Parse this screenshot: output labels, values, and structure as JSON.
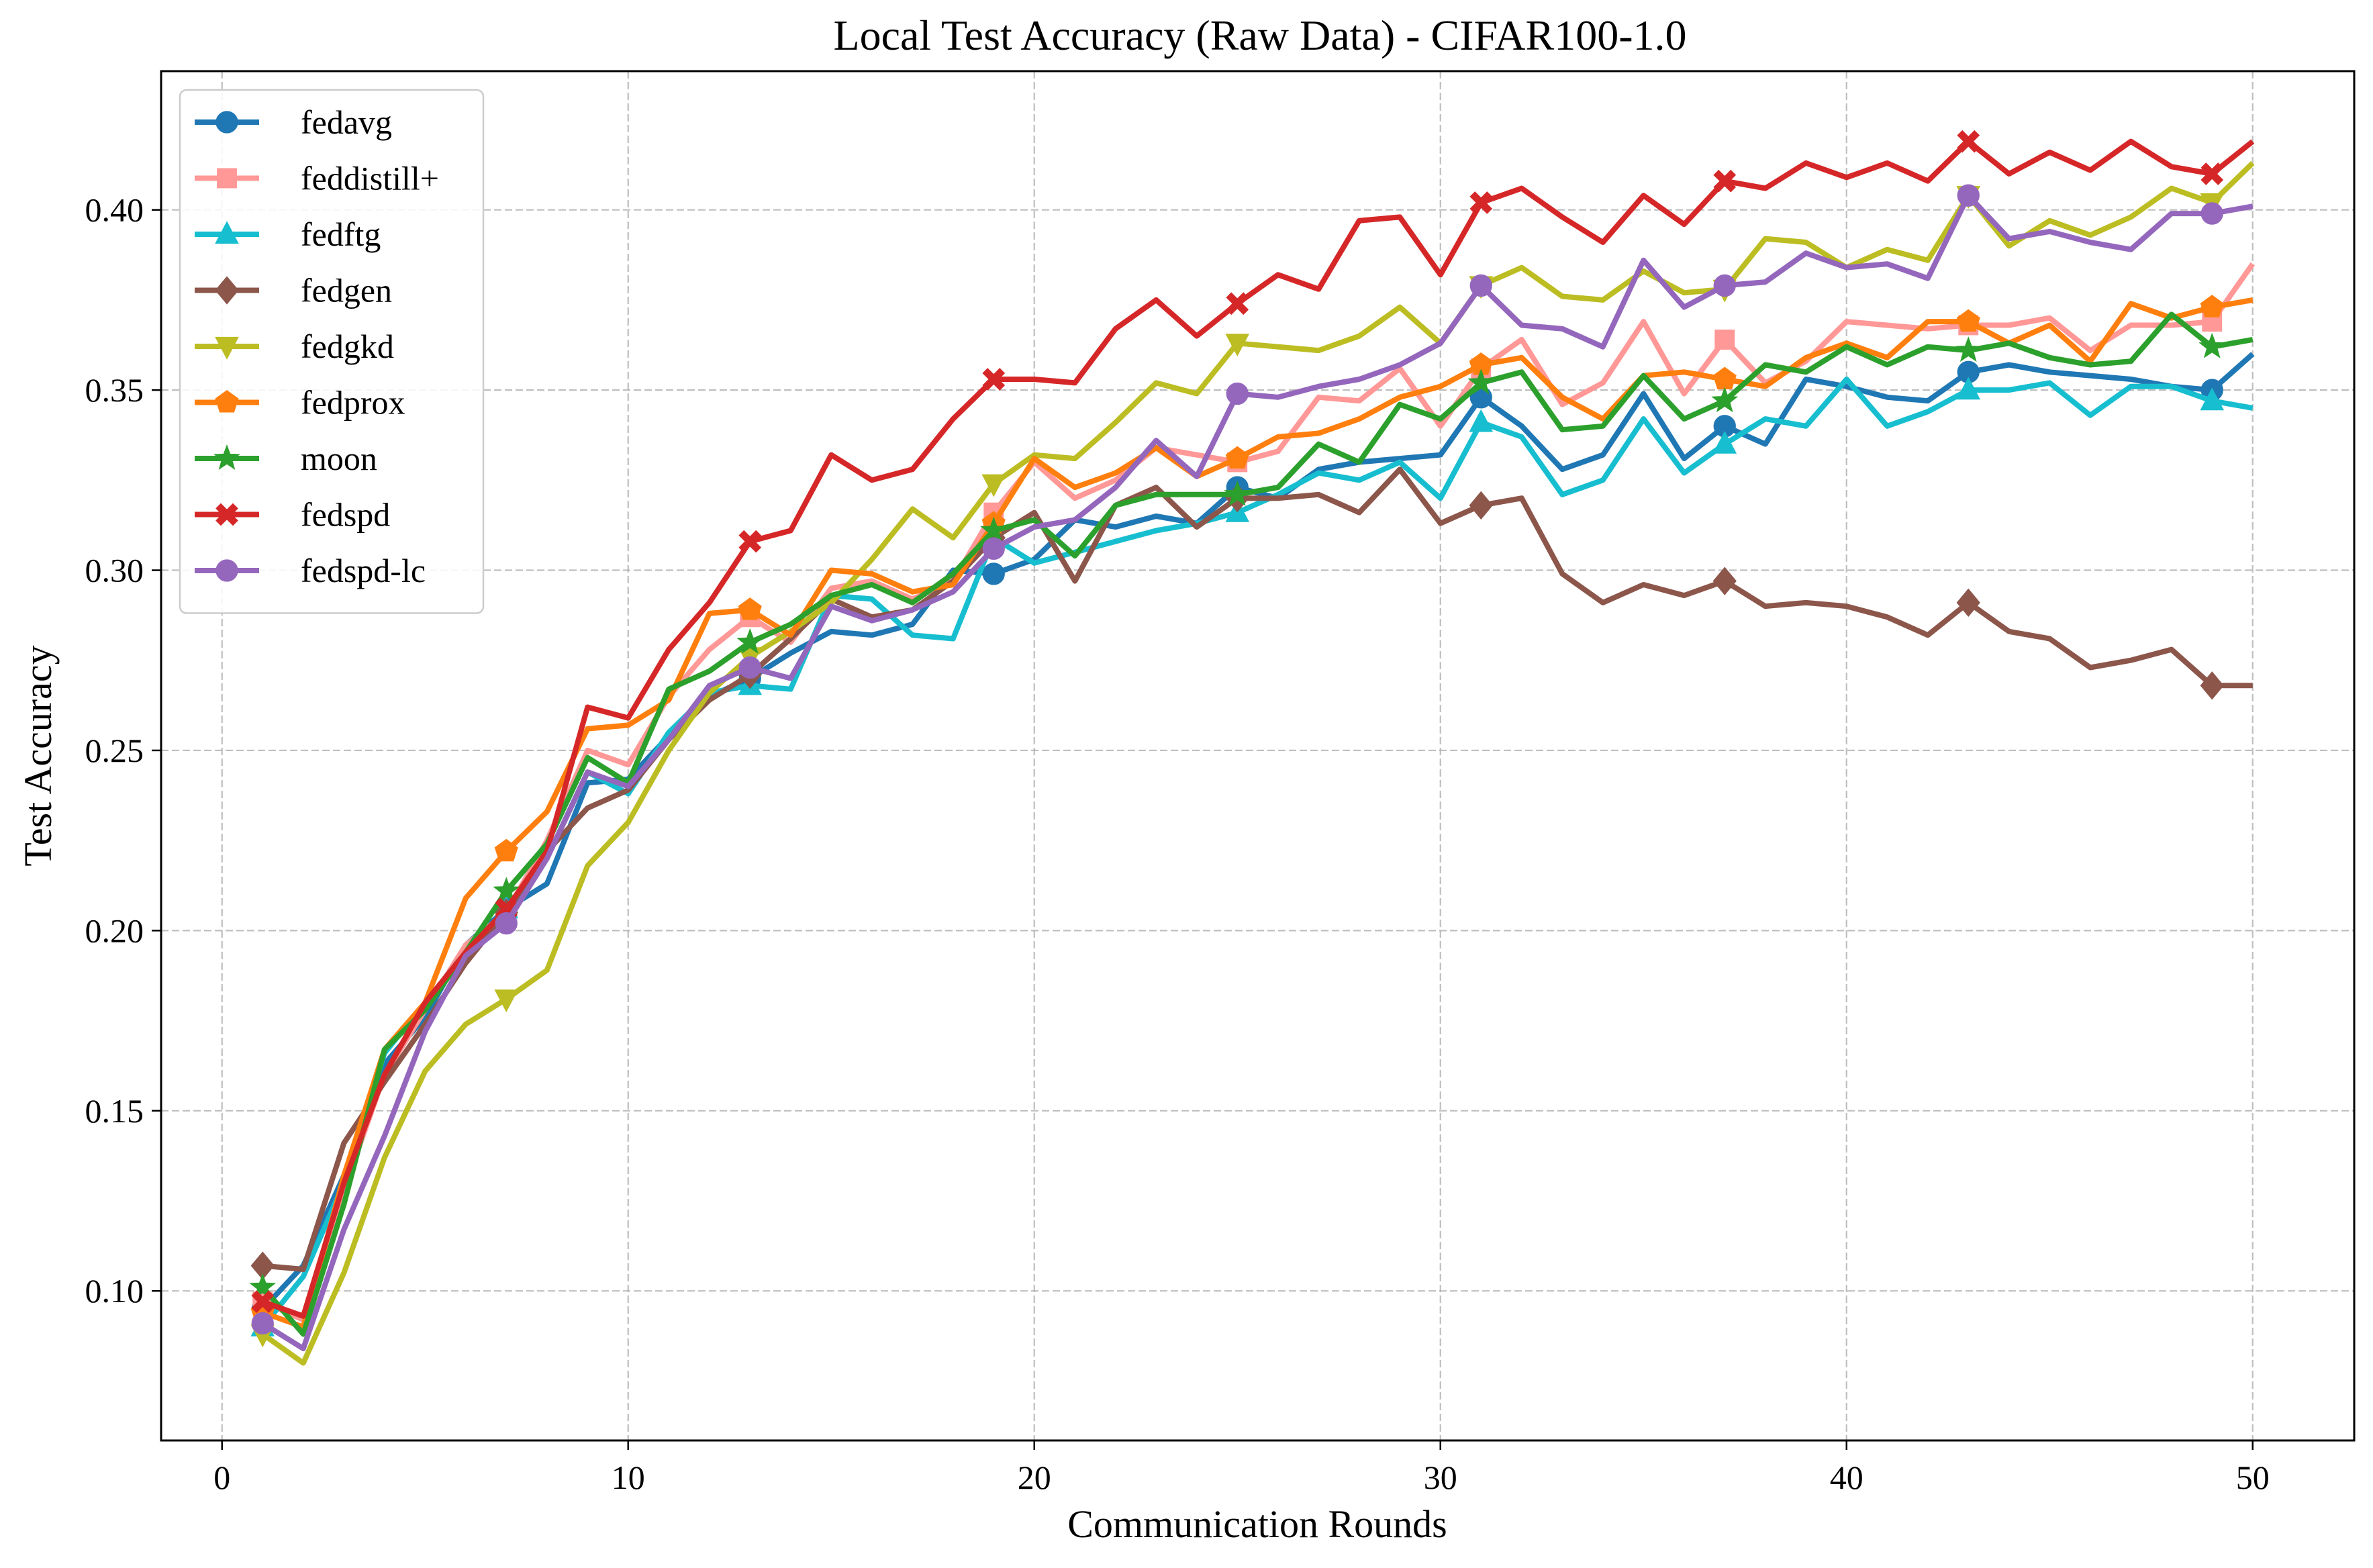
{
  "chart_data": {
    "type": "line",
    "title": "Local Test Accuracy (Raw Data) - CIFAR100-1.0",
    "xlabel": "Communication Rounds",
    "ylabel": "Test Accuracy",
    "xlim": [
      -1.5,
      52.5
    ],
    "ylim": [
      0.0585,
      0.4385
    ],
    "xticks": [
      0,
      10,
      20,
      30,
      40,
      50
    ],
    "xtick_labels": [
      "0",
      "10",
      "20",
      "30",
      "40",
      "50"
    ],
    "yticks": [
      0.1,
      0.15,
      0.2,
      0.25,
      0.3,
      0.35,
      0.4
    ],
    "ytick_labels": [
      "0.10",
      "0.15",
      "0.20",
      "0.25",
      "0.30",
      "0.35",
      "0.40"
    ],
    "grid": true,
    "legend_position": "upper-left",
    "marker_x": [
      1,
      7,
      13,
      19,
      25,
      31,
      37,
      43,
      49
    ],
    "x": [
      1,
      2,
      3,
      4,
      5,
      6,
      7,
      8,
      9,
      10,
      11,
      12,
      13,
      14,
      15,
      16,
      17,
      18,
      19,
      20,
      21,
      22,
      23,
      24,
      25,
      26,
      27,
      28,
      29,
      30,
      31,
      32,
      33,
      34,
      35,
      36,
      37,
      38,
      39,
      40,
      41,
      42,
      43,
      44,
      45,
      46,
      47,
      48,
      49,
      50
    ],
    "series": [
      {
        "name": "fedavg",
        "color": "#1f77b4",
        "marker": "circle",
        "values": [
          0.095,
          0.107,
          0.132,
          0.163,
          0.176,
          0.196,
          0.206,
          0.213,
          0.241,
          0.242,
          0.254,
          0.265,
          0.27,
          0.277,
          0.283,
          0.282,
          0.285,
          0.3,
          0.299,
          0.303,
          0.314,
          0.312,
          0.315,
          0.313,
          0.323,
          0.32,
          0.328,
          0.33,
          0.331,
          0.332,
          0.348,
          0.34,
          0.328,
          0.332,
          0.349,
          0.331,
          0.34,
          0.335,
          0.353,
          0.351,
          0.348,
          0.347,
          0.355,
          0.357,
          0.355,
          0.354,
          0.353,
          0.351,
          0.35,
          0.36
        ]
      },
      {
        "name": "feddistill+",
        "color": "#ff9896",
        "marker": "square",
        "values": [
          0.097,
          0.092,
          0.128,
          0.16,
          0.178,
          0.196,
          0.205,
          0.225,
          0.25,
          0.246,
          0.265,
          0.278,
          0.287,
          0.28,
          0.295,
          0.297,
          0.292,
          0.297,
          0.316,
          0.33,
          0.32,
          0.325,
          0.334,
          0.332,
          0.33,
          0.333,
          0.348,
          0.347,
          0.356,
          0.34,
          0.356,
          0.364,
          0.346,
          0.352,
          0.369,
          0.349,
          0.364,
          0.352,
          0.358,
          0.369,
          0.368,
          0.367,
          0.368,
          0.368,
          0.37,
          0.361,
          0.368,
          0.368,
          0.369,
          0.385
        ]
      },
      {
        "name": "fedftg",
        "color": "#17becf",
        "marker": "triangle-up",
        "values": [
          0.09,
          0.104,
          0.13,
          0.166,
          0.18,
          0.194,
          0.206,
          0.22,
          0.244,
          0.238,
          0.255,
          0.266,
          0.268,
          0.267,
          0.293,
          0.292,
          0.282,
          0.281,
          0.309,
          0.302,
          0.305,
          0.308,
          0.311,
          0.313,
          0.316,
          0.321,
          0.327,
          0.325,
          0.33,
          0.32,
          0.341,
          0.337,
          0.321,
          0.325,
          0.342,
          0.327,
          0.335,
          0.342,
          0.34,
          0.353,
          0.34,
          0.344,
          0.35,
          0.35,
          0.352,
          0.343,
          0.351,
          0.351,
          0.347,
          0.345
        ]
      },
      {
        "name": "fedgen",
        "color": "#8c564b",
        "marker": "diamond",
        "values": [
          0.107,
          0.106,
          0.141,
          0.158,
          0.174,
          0.191,
          0.205,
          0.222,
          0.234,
          0.239,
          0.253,
          0.264,
          0.271,
          0.281,
          0.292,
          0.287,
          0.289,
          0.297,
          0.309,
          0.316,
          0.297,
          0.318,
          0.323,
          0.312,
          0.32,
          0.32,
          0.321,
          0.316,
          0.328,
          0.313,
          0.318,
          0.32,
          0.299,
          0.291,
          0.296,
          0.293,
          0.297,
          0.29,
          0.291,
          0.29,
          0.287,
          0.282,
          0.291,
          0.283,
          0.281,
          0.273,
          0.275,
          0.278,
          0.268,
          0.268
        ]
      },
      {
        "name": "fedgkd",
        "color": "#bcbd22",
        "marker": "triangle-down",
        "values": [
          0.088,
          0.08,
          0.105,
          0.137,
          0.161,
          0.174,
          0.181,
          0.189,
          0.218,
          0.23,
          0.25,
          0.266,
          0.276,
          0.283,
          0.291,
          0.303,
          0.317,
          0.309,
          0.324,
          0.332,
          0.331,
          0.341,
          0.352,
          0.349,
          0.363,
          0.362,
          0.361,
          0.365,
          0.373,
          0.363,
          0.379,
          0.384,
          0.376,
          0.375,
          0.383,
          0.377,
          0.378,
          0.392,
          0.391,
          0.384,
          0.389,
          0.386,
          0.404,
          0.39,
          0.397,
          0.393,
          0.398,
          0.406,
          0.402,
          0.413
        ]
      },
      {
        "name": "fedprox",
        "color": "#ff7f0e",
        "marker": "pentagon",
        "values": [
          0.094,
          0.09,
          0.132,
          0.167,
          0.18,
          0.209,
          0.222,
          0.233,
          0.256,
          0.257,
          0.264,
          0.288,
          0.289,
          0.282,
          0.3,
          0.299,
          0.294,
          0.296,
          0.313,
          0.331,
          0.323,
          0.327,
          0.334,
          0.326,
          0.331,
          0.337,
          0.338,
          0.342,
          0.348,
          0.351,
          0.357,
          0.359,
          0.348,
          0.342,
          0.354,
          0.355,
          0.353,
          0.351,
          0.359,
          0.363,
          0.359,
          0.369,
          0.369,
          0.363,
          0.368,
          0.358,
          0.374,
          0.37,
          0.373,
          0.375
        ]
      },
      {
        "name": "moon",
        "color": "#2ca02c",
        "marker": "star",
        "values": [
          0.101,
          0.088,
          0.124,
          0.167,
          0.178,
          0.194,
          0.211,
          0.224,
          0.248,
          0.241,
          0.267,
          0.272,
          0.28,
          0.285,
          0.293,
          0.296,
          0.291,
          0.299,
          0.311,
          0.314,
          0.304,
          0.318,
          0.321,
          0.321,
          0.321,
          0.323,
          0.335,
          0.33,
          0.346,
          0.342,
          0.352,
          0.355,
          0.339,
          0.34,
          0.354,
          0.342,
          0.347,
          0.357,
          0.355,
          0.362,
          0.357,
          0.362,
          0.361,
          0.363,
          0.359,
          0.357,
          0.358,
          0.371,
          0.362,
          0.364
        ]
      },
      {
        "name": "fedspd",
        "color": "#d62728",
        "marker": "x",
        "values": [
          0.097,
          0.093,
          0.13,
          0.16,
          0.18,
          0.194,
          0.206,
          0.222,
          0.262,
          0.259,
          0.278,
          0.291,
          0.308,
          0.311,
          0.332,
          0.325,
          0.328,
          0.342,
          0.353,
          0.353,
          0.352,
          0.367,
          0.375,
          0.365,
          0.374,
          0.382,
          0.378,
          0.397,
          0.398,
          0.382,
          0.402,
          0.406,
          0.398,
          0.391,
          0.404,
          0.396,
          0.408,
          0.406,
          0.413,
          0.409,
          0.413,
          0.408,
          0.419,
          0.41,
          0.416,
          0.411,
          0.419,
          0.412,
          0.41,
          0.419
        ]
      },
      {
        "name": "fedspd-lc",
        "color": "#9467bd",
        "marker": "circle",
        "values": [
          0.091,
          0.084,
          0.117,
          0.143,
          0.172,
          0.193,
          0.202,
          0.22,
          0.244,
          0.24,
          0.253,
          0.268,
          0.273,
          0.27,
          0.29,
          0.286,
          0.289,
          0.294,
          0.306,
          0.312,
          0.314,
          0.323,
          0.336,
          0.326,
          0.349,
          0.348,
          0.351,
          0.353,
          0.357,
          0.363,
          0.379,
          0.368,
          0.367,
          0.362,
          0.386,
          0.373,
          0.379,
          0.38,
          0.388,
          0.384,
          0.385,
          0.381,
          0.404,
          0.392,
          0.394,
          0.391,
          0.389,
          0.399,
          0.399,
          0.401
        ]
      }
    ]
  }
}
